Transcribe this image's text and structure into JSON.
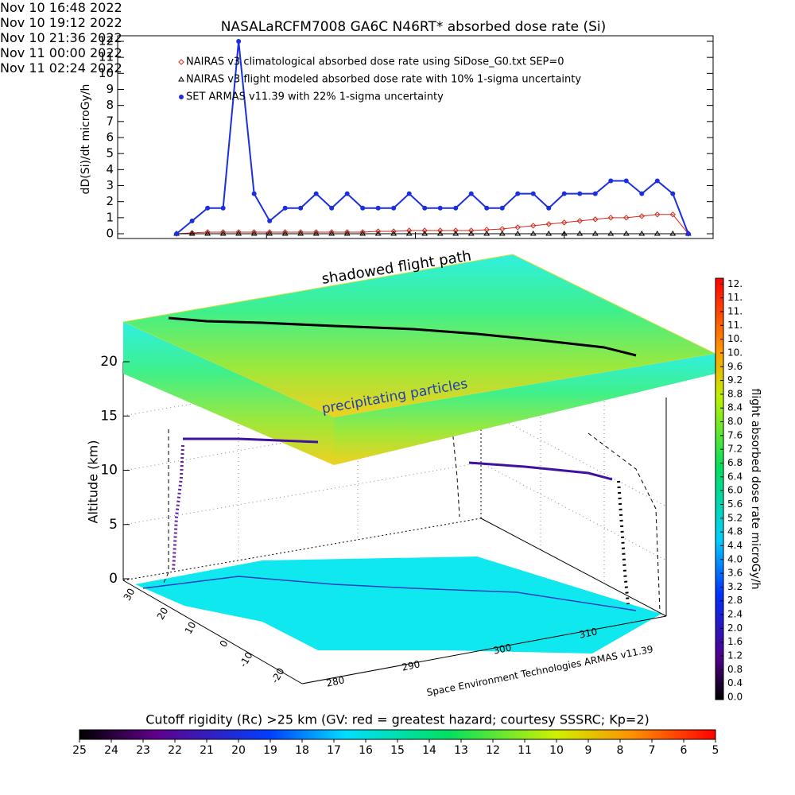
{
  "chart_data": [
    {
      "type": "line",
      "title": "NASALaRCFM7008  GA6C N46RT* absorbed dose rate (Si)",
      "ylabel": "dD(Si)/dt microGy/h",
      "x": [
        "2022-11-10 17:45",
        "2022-11-10 18:00",
        "2022-11-10 18:15",
        "2022-11-10 18:30",
        "2022-11-10 18:45",
        "2022-11-10 19:00",
        "2022-11-10 19:15",
        "2022-11-10 19:30",
        "2022-11-10 19:45",
        "2022-11-10 20:00",
        "2022-11-10 20:15",
        "2022-11-10 20:30",
        "2022-11-10 20:45",
        "2022-11-10 21:00",
        "2022-11-10 21:15",
        "2022-11-10 21:30",
        "2022-11-10 21:45",
        "2022-11-10 22:00",
        "2022-11-10 22:15",
        "2022-11-10 22:30",
        "2022-11-10 22:45",
        "2022-11-10 23:00",
        "2022-11-10 23:15",
        "2022-11-10 23:30",
        "2022-11-10 23:45",
        "2022-11-11 00:00",
        "2022-11-11 00:15",
        "2022-11-11 00:30",
        "2022-11-11 00:45",
        "2022-11-11 01:00",
        "2022-11-11 01:15",
        "2022-11-11 01:30",
        "2022-11-11 01:45",
        "2022-11-11 02:00"
      ],
      "xlim": [
        "2022-11-10 16:48",
        "2022-11-11 02:24"
      ],
      "xticks": [
        {
          "value": "2022-11-10 16:48",
          "label": "Nov 10\n16:48 2022"
        },
        {
          "value": "2022-11-10 19:12",
          "label": "Nov 10\n19:12 2022"
        },
        {
          "value": "2022-11-10 21:36",
          "label": "Nov 10\n21:36 2022"
        },
        {
          "value": "2022-11-11 00:00",
          "label": "Nov 11\n00:00 2022"
        },
        {
          "value": "2022-11-11 02:24",
          "label": "Nov 11\n02:24 2022"
        }
      ],
      "ylim": [
        0,
        12
      ],
      "yticks": [
        0,
        1,
        2,
        3,
        4,
        5,
        6,
        7,
        8,
        9,
        10,
        11,
        12
      ],
      "series": [
        {
          "name": "NAIRAS v3 climatological absorbed dose rate using SiDose_G0.txt SEP=0",
          "color": "#d42a1e",
          "marker": "diamond",
          "values": [
            0,
            0.05,
            0.1,
            0.1,
            0.1,
            0.1,
            0.1,
            0.1,
            0.1,
            0.1,
            0.1,
            0.1,
            0.1,
            0.15,
            0.15,
            0.2,
            0.2,
            0.2,
            0.2,
            0.2,
            0.25,
            0.3,
            0.4,
            0.5,
            0.6,
            0.7,
            0.8,
            0.9,
            1.0,
            1.0,
            1.1,
            1.2,
            1.2,
            0
          ]
        },
        {
          "name": "NAIRAS v3 flight modeled absorbed dose rate with 10% 1-sigma uncertainty",
          "color": "#000000",
          "marker": "triangle",
          "values": [
            0,
            0,
            0,
            0,
            0,
            0,
            0,
            0,
            0,
            0,
            0,
            0,
            0,
            0,
            0,
            0,
            0,
            0,
            0,
            0,
            0,
            0,
            0,
            0,
            0,
            0,
            0,
            0,
            0,
            0,
            0,
            0,
            0,
            0
          ]
        },
        {
          "name": "SET ARMAS v11.39 with 22% 1-sigma uncertainty",
          "color": "#1c2fe0",
          "marker": "circle",
          "values": [
            0,
            0.8,
            1.6,
            1.6,
            12,
            2.5,
            0.8,
            1.6,
            1.6,
            2.5,
            1.6,
            2.5,
            1.6,
            1.6,
            1.6,
            2.5,
            1.6,
            1.6,
            1.6,
            2.5,
            1.6,
            1.6,
            2.5,
            2.5,
            1.6,
            2.5,
            2.5,
            2.5,
            3.3,
            3.3,
            2.5,
            3.3,
            2.5,
            0
          ]
        }
      ]
    },
    {
      "type": "surface3d",
      "path_label": "shadowed flight path",
      "particles_label": "precipitating particles",
      "credit": "Space Environment Technologies ARMAS v11.39",
      "zlabel": "Altitude (km)",
      "zlim": [
        0,
        20
      ],
      "zticks": [
        0,
        5,
        10,
        15,
        20
      ],
      "lat_ticks": [
        30,
        20,
        10,
        0,
        -10,
        -20
      ],
      "lon_ticks": [
        280,
        290,
        300,
        310
      ]
    },
    {
      "type": "colorbar",
      "orientation": "vertical",
      "label": "flight absorbed dose rate microGy/h",
      "ylim": [
        0,
        12.1
      ],
      "yticks": [
        {
          "value": 0,
          "label": "0.0"
        },
        {
          "value": 0.4,
          "label": "0.4"
        },
        {
          "value": 0.8,
          "label": "0.8"
        },
        {
          "value": 1.2,
          "label": "1.2"
        },
        {
          "value": 1.6,
          "label": "1.6"
        },
        {
          "value": 2,
          "label": "2.0"
        },
        {
          "value": 2.4,
          "label": "2.4"
        },
        {
          "value": 2.8,
          "label": "2.8"
        },
        {
          "value": 3.2,
          "label": "3.2"
        },
        {
          "value": 3.6,
          "label": "3.6"
        },
        {
          "value": 4,
          "label": "4.0"
        },
        {
          "value": 4.4,
          "label": "4.4"
        },
        {
          "value": 4.8,
          "label": "4.8"
        },
        {
          "value": 5.2,
          "label": "5.2"
        },
        {
          "value": 5.6,
          "label": "5.6"
        },
        {
          "value": 6,
          "label": "6.0"
        },
        {
          "value": 6.4,
          "label": "6.4"
        },
        {
          "value": 6.8,
          "label": "6.8"
        },
        {
          "value": 7.2,
          "label": "7.2"
        },
        {
          "value": 7.6,
          "label": "7.6"
        },
        {
          "value": 8,
          "label": "8.0"
        },
        {
          "value": 8.4,
          "label": "8.4"
        },
        {
          "value": 8.8,
          "label": "8.8"
        },
        {
          "value": 9.2,
          "label": "9.2"
        },
        {
          "value": 9.6,
          "label": "9.6"
        },
        {
          "value": 10,
          "label": "10."
        },
        {
          "value": 10.4,
          "label": "10."
        },
        {
          "value": 10.8,
          "label": "11."
        },
        {
          "value": 11.2,
          "label": "11."
        },
        {
          "value": 11.6,
          "label": "11."
        },
        {
          "value": 12,
          "label": "12."
        }
      ]
    },
    {
      "type": "colorbar",
      "orientation": "horizontal",
      "title": "Cutoff rigidity (Rc) >25 km (GV: red = greatest hazard; courtesy SSSRC; Kp=2)",
      "xlim": [
        25,
        5
      ],
      "xticks": [
        25,
        24,
        23,
        22,
        21,
        20,
        19,
        18,
        17,
        16,
        15,
        14,
        13,
        12,
        11,
        10,
        9,
        8,
        7,
        6,
        5
      ]
    }
  ]
}
